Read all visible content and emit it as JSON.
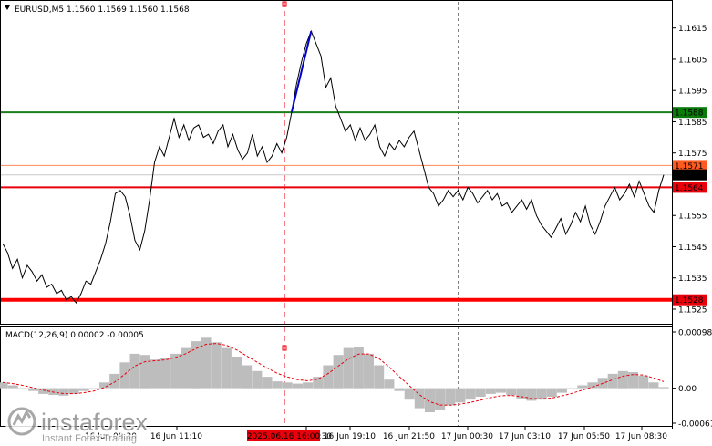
{
  "header": {
    "symbol": "EURUSD,M5",
    "ohlc": "1.1560 1.1569 1.1560 1.1568"
  },
  "price_axis": {
    "ticks": [
      "1.1615",
      "1.1605",
      "1.1595",
      "1.1585",
      "1.1575",
      "1.1565",
      "1.1555",
      "1.1545",
      "1.1535",
      "1.1525"
    ],
    "tags": [
      {
        "text": "1.1588",
        "price": 1.1588,
        "color": "#0a7a0a",
        "line": "#1a7f1a",
        "width": 2
      },
      {
        "text": "1.1571",
        "price": 1.1571,
        "color": "#ff5a1f",
        "line": "#ff8a55",
        "width": 1
      },
      {
        "text": "1.1568",
        "price": 1.1568,
        "color": "#000000",
        "line": "#c8c8c8",
        "width": 1
      },
      {
        "text": "1.1564",
        "price": 1.1564,
        "color": "#e8000b",
        "line": "#e8000b",
        "width": 2
      },
      {
        "text": "1.1528",
        "price": 1.1528,
        "color": "#e8000b",
        "line": "#ff0000",
        "width": 4
      }
    ]
  },
  "macd": {
    "label": "MACD(12,26,9) 0.00002 -0.00005",
    "ticks": [
      "0.00098",
      "0.00",
      "-0.00061"
    ]
  },
  "time_axis": {
    "ticks": [
      "16 Jun 08:30",
      "16 Jun 11:10",
      "16 Jun 16:30",
      "16 Jun 19:10",
      "16 Jun 21:50",
      "17 Jun 00:30",
      "17 Jun 03:10",
      "17 Jun 05:50",
      "17 Jun 08:30"
    ],
    "highlight": "2025.06.16 16:00"
  },
  "watermark": {
    "brand": "instaforex",
    "tagline": "Instant Forex Trading"
  },
  "colors": {
    "price_line": "#000000",
    "impulse_line": "#0000cc",
    "histogram": "#bdbdbd",
    "signal": "#e8000b"
  },
  "chart_data": {
    "type": "line",
    "title": "EURUSD,M5",
    "ylim": [
      1.1521,
      1.1623
    ],
    "series": [
      {
        "name": "EURUSD",
        "values": [
          1.1546,
          1.1543,
          1.1538,
          1.1541,
          1.1535,
          1.1539,
          1.1537,
          1.1534,
          1.1536,
          1.1532,
          1.1533,
          1.153,
          1.1531,
          1.1528,
          1.1529,
          1.1527,
          1.153,
          1.1534,
          1.1533,
          1.1537,
          1.1541,
          1.1546,
          1.1553,
          1.1562,
          1.1563,
          1.1561,
          1.1555,
          1.1547,
          1.1544,
          1.155,
          1.156,
          1.1572,
          1.1577,
          1.1574,
          1.158,
          1.1586,
          1.158,
          1.1584,
          1.1579,
          1.1583,
          1.1584,
          1.158,
          1.1581,
          1.1578,
          1.1582,
          1.1584,
          1.1577,
          1.1581,
          1.1576,
          1.1573,
          1.1575,
          1.1581,
          1.1574,
          1.1577,
          1.1572,
          1.1574,
          1.1578,
          1.1575,
          1.158,
          1.1588,
          1.1597,
          1.1604,
          1.161,
          1.1614,
          1.161,
          1.1606,
          1.1596,
          1.1599,
          1.159,
          1.1586,
          1.1582,
          1.1584,
          1.1579,
          1.1583,
          1.1579,
          1.1581,
          1.1584,
          1.1577,
          1.1574,
          1.1578,
          1.1576,
          1.1579,
          1.1577,
          1.158,
          1.1582,
          1.1576,
          1.157,
          1.1564,
          1.1562,
          1.1558,
          1.156,
          1.1563,
          1.1561,
          1.1563,
          1.156,
          1.1564,
          1.1562,
          1.1559,
          1.1561,
          1.1563,
          1.156,
          1.1562,
          1.1558,
          1.1559,
          1.1556,
          1.1558,
          1.156,
          1.1557,
          1.156,
          1.1555,
          1.1552,
          1.155,
          1.1548,
          1.1551,
          1.1554,
          1.1549,
          1.1552,
          1.1556,
          1.1553,
          1.1558,
          1.1552,
          1.1549,
          1.1553,
          1.1558,
          1.1561,
          1.1564,
          1.156,
          1.1562,
          1.1565,
          1.1561,
          1.1566,
          1.1562,
          1.1558,
          1.1556,
          1.1563,
          1.1568
        ]
      },
      {
        "name": "MACD",
        "values": [
          0.0001,
          5e-05,
          0.0,
          -5e-05,
          -0.0001,
          -0.00012,
          -0.00013,
          -0.0001,
          -5e-05,
          0.0,
          0.0001,
          0.00025,
          0.00045,
          0.0006,
          0.00058,
          0.0005,
          0.00052,
          0.0006,
          0.0007,
          0.00082,
          0.00088,
          0.0008,
          0.0007,
          0.00055,
          0.0004,
          0.0003,
          0.0002,
          0.00012,
          0.0001,
          8e-05,
          0.0001,
          0.0002,
          0.0004,
          0.00058,
          0.0007,
          0.00072,
          0.0006,
          0.0004,
          0.00015,
          -5e-05,
          -0.0002,
          -0.00035,
          -0.00042,
          -0.00038,
          -0.0003,
          -0.00025,
          -0.0002,
          -0.00015,
          -0.0001,
          -8e-05,
          -0.00012,
          -0.00018,
          -0.00022,
          -0.0002,
          -0.00015,
          -8e-05,
          -2e-05,
          5e-05,
          0.0001,
          0.00018,
          0.00025,
          0.0003,
          0.00028,
          0.00022,
          0.0001,
          2e-05
        ]
      }
    ]
  }
}
